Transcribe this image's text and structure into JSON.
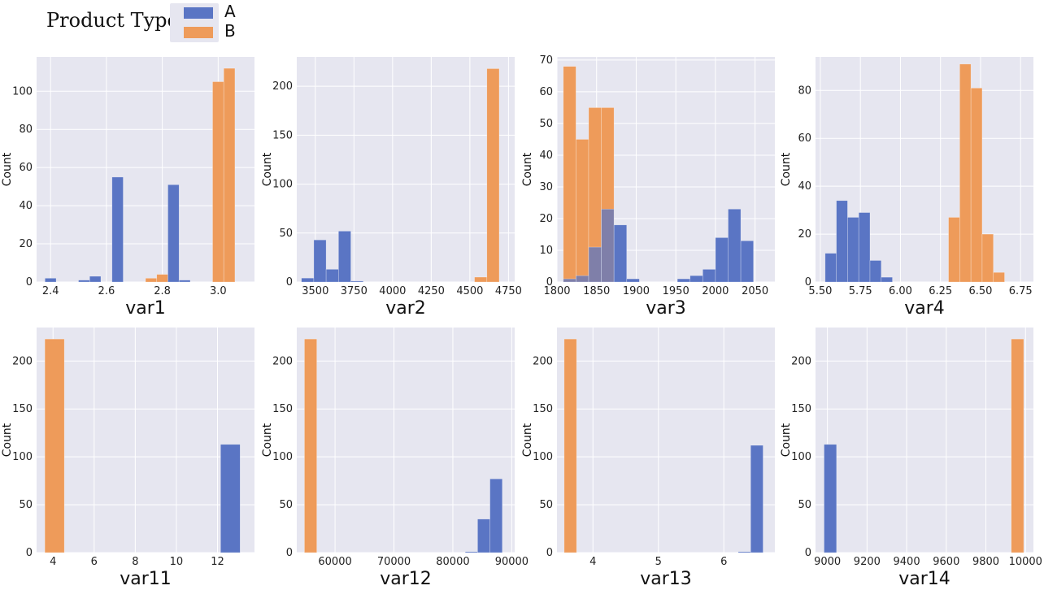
{
  "legend": {
    "title": "Product Type",
    "entries": [
      {
        "label": "A",
        "color": "#5a75c4"
      },
      {
        "label": "B",
        "color": "#ee9b5a"
      }
    ]
  },
  "style": {
    "plot_bg": "#e6e6f0",
    "grid": "#ffffff",
    "overlap": "#6a5aa8"
  },
  "chart_data": [
    {
      "type": "bar",
      "subtype": "histogram",
      "xlabel": "var1",
      "ylabel": "Count",
      "xlim": [
        2.35,
        3.13
      ],
      "ylim": [
        0,
        118
      ],
      "xticks": [
        2.4,
        2.6,
        2.8,
        3.0
      ],
      "xtick_labels": [
        "2.4",
        "2.6",
        "2.8",
        "3.0"
      ],
      "yticks": [
        0,
        20,
        40,
        60,
        80,
        100
      ],
      "grid": true,
      "bin_edges": [
        2.38,
        2.42,
        2.46,
        2.5,
        2.54,
        2.58,
        2.62,
        2.66,
        2.7,
        2.74,
        2.78,
        2.82,
        2.86,
        2.9,
        2.94,
        2.98,
        3.02,
        3.06,
        3.1
      ],
      "series": [
        {
          "name": "A",
          "counts": [
            2,
            0,
            0,
            1,
            3,
            0,
            55,
            0,
            0,
            0,
            0,
            51,
            1,
            0,
            0,
            0,
            0,
            0
          ]
        },
        {
          "name": "B",
          "counts": [
            0,
            0,
            0,
            0,
            0,
            0,
            0,
            0,
            0,
            2,
            4,
            0,
            0,
            0,
            0,
            105,
            112,
            0
          ]
        }
      ]
    },
    {
      "type": "bar",
      "subtype": "histogram",
      "xlabel": "var2",
      "ylabel": "Count",
      "xlim": [
        3380,
        4790
      ],
      "ylim": [
        0,
        230
      ],
      "xticks": [
        3500,
        3750,
        4000,
        4250,
        4500,
        4750
      ],
      "xtick_labels": [
        "3500",
        "3750",
        "4000",
        "4250",
        "4500",
        "4750"
      ],
      "yticks": [
        0,
        50,
        100,
        150,
        200
      ],
      "grid": true,
      "bin_edges": [
        3410,
        3490,
        3570,
        3650,
        3730,
        3810,
        3890,
        3970,
        4050,
        4130,
        4210,
        4290,
        4370,
        4450,
        4530,
        4610,
        4690,
        4770
      ],
      "series": [
        {
          "name": "A",
          "counts": [
            4,
            43,
            13,
            52,
            1,
            0,
            0,
            0,
            0,
            0,
            0,
            0,
            0,
            0,
            0,
            0,
            0
          ]
        },
        {
          "name": "B",
          "counts": [
            0,
            0,
            0,
            0,
            0,
            0,
            0,
            0,
            0,
            0,
            0,
            0,
            0,
            0,
            5,
            218,
            0
          ]
        }
      ]
    },
    {
      "type": "bar",
      "subtype": "histogram",
      "xlabel": "var3",
      "ylabel": "Count",
      "xlim": [
        1800,
        2075
      ],
      "ylim": [
        0,
        71
      ],
      "xticks": [
        1800,
        1850,
        1900,
        1950,
        2000,
        2050
      ],
      "xtick_labels": [
        "1800",
        "1850",
        "1900",
        "1950",
        "2000",
        "2050"
      ],
      "yticks": [
        0,
        10,
        20,
        30,
        40,
        50,
        60,
        70
      ],
      "grid": true,
      "bin_edges": [
        1808,
        1824,
        1840,
        1856,
        1872,
        1888,
        1904,
        1920,
        1936,
        1952,
        1968,
        1984,
        2000,
        2016,
        2032,
        2048,
        2064
      ],
      "series": [
        {
          "name": "A",
          "counts": [
            1,
            2,
            11,
            23,
            18,
            1,
            0,
            0,
            0,
            1,
            2,
            4,
            14,
            23,
            13,
            0
          ]
        },
        {
          "name": "B",
          "counts": [
            68,
            45,
            55,
            55,
            0,
            0,
            0,
            0,
            0,
            0,
            0,
            0,
            0,
            0,
            0,
            0
          ]
        }
      ]
    },
    {
      "type": "bar",
      "subtype": "histogram",
      "xlabel": "var4",
      "ylabel": "Count",
      "xlim": [
        5.47,
        6.83
      ],
      "ylim": [
        0,
        94
      ],
      "xticks": [
        5.5,
        5.75,
        6.0,
        6.25,
        6.5,
        6.75
      ],
      "xtick_labels": [
        "5.50",
        "5.75",
        "6.00",
        "6.25",
        "6.50",
        "6.75"
      ],
      "yticks": [
        0,
        20,
        40,
        60,
        80
      ],
      "grid": true,
      "bin_edges": [
        5.53,
        5.6,
        5.67,
        5.74,
        5.81,
        5.88,
        5.95,
        6.02,
        6.09,
        6.16,
        6.23,
        6.3,
        6.37,
        6.44,
        6.51,
        6.58,
        6.65,
        6.72,
        6.79
      ],
      "series": [
        {
          "name": "A",
          "counts": [
            12,
            34,
            27,
            29,
            9,
            2,
            0,
            0,
            0,
            0,
            0,
            0,
            0,
            0,
            0,
            0,
            0,
            0
          ]
        },
        {
          "name": "B",
          "counts": [
            0,
            0,
            0,
            0,
            0,
            0,
            0,
            0,
            0,
            0,
            0,
            27,
            91,
            81,
            20,
            4,
            0,
            0
          ]
        }
      ]
    },
    {
      "type": "bar",
      "subtype": "histogram",
      "xlabel": "var11",
      "ylabel": "Count",
      "xlim": [
        3.2,
        13.8
      ],
      "ylim": [
        0,
        235
      ],
      "xticks": [
        4,
        6,
        8,
        10,
        12
      ],
      "xtick_labels": [
        "4",
        "6",
        "8",
        "10",
        "12"
      ],
      "yticks": [
        0,
        50,
        100,
        150,
        200
      ],
      "grid": true,
      "bin_edges": [
        3.6,
        4.55,
        5.5,
        6.45,
        7.4,
        8.35,
        9.3,
        10.25,
        11.2,
        12.15,
        13.1
      ],
      "series": [
        {
          "name": "A",
          "counts": [
            0,
            0,
            0,
            0,
            0,
            0,
            0,
            0,
            0,
            113
          ]
        },
        {
          "name": "B",
          "counts": [
            223,
            0,
            0,
            0,
            0,
            0,
            0,
            0,
            0,
            0
          ]
        }
      ]
    },
    {
      "type": "bar",
      "subtype": "histogram",
      "xlabel": "var12",
      "ylabel": "Count",
      "xlim": [
        53500,
        90500
      ],
      "ylim": [
        0,
        235
      ],
      "xticks": [
        60000,
        70000,
        80000,
        90000
      ],
      "xtick_labels": [
        "60000",
        "70000",
        "80000",
        "90000"
      ],
      "yticks": [
        0,
        50,
        100,
        150,
        200
      ],
      "grid": true,
      "bin_edges": [
        54800,
        56900,
        59000,
        61100,
        63200,
        65300,
        67400,
        69500,
        71600,
        73700,
        75800,
        77900,
        80000,
        82100,
        84200,
        86300,
        88400
      ],
      "series": [
        {
          "name": "A",
          "counts": [
            0,
            0,
            0,
            0,
            0,
            0,
            0,
            0,
            0,
            0,
            0,
            0,
            0,
            1,
            35,
            77
          ]
        },
        {
          "name": "B",
          "counts": [
            223,
            0,
            0,
            0,
            0,
            0,
            0,
            0,
            0,
            0,
            0,
            0,
            0,
            0,
            0,
            0
          ]
        }
      ]
    },
    {
      "type": "bar",
      "subtype": "histogram",
      "xlabel": "var13",
      "ylabel": "Count",
      "xlim": [
        3.45,
        6.78
      ],
      "ylim": [
        0,
        235
      ],
      "xticks": [
        4,
        5,
        6
      ],
      "xtick_labels": [
        "4",
        "5",
        "6"
      ],
      "yticks": [
        0,
        50,
        100,
        150,
        200
      ],
      "grid": true,
      "bin_edges": [
        3.56,
        3.75,
        3.94,
        4.13,
        4.32,
        4.51,
        4.7,
        4.89,
        5.08,
        5.27,
        5.46,
        5.65,
        5.84,
        6.03,
        6.22,
        6.41,
        6.6
      ],
      "series": [
        {
          "name": "A",
          "counts": [
            0,
            0,
            0,
            0,
            0,
            0,
            0,
            0,
            0,
            0,
            0,
            0,
            0,
            0,
            1,
            112
          ]
        },
        {
          "name": "B",
          "counts": [
            223,
            0,
            0,
            0,
            0,
            0,
            0,
            0,
            0,
            0,
            0,
            0,
            0,
            0,
            0,
            0
          ]
        }
      ]
    },
    {
      "type": "bar",
      "subtype": "histogram",
      "xlabel": "var14",
      "ylabel": "Count",
      "xlim": [
        8940,
        10040
      ],
      "ylim": [
        0,
        235
      ],
      "xticks": [
        9000,
        9200,
        9400,
        9600,
        9800,
        10000
      ],
      "xtick_labels": [
        "9000",
        "9200",
        "9400",
        "9600",
        "9800",
        "10000"
      ],
      "yticks": [
        0,
        50,
        100,
        150,
        200
      ],
      "grid": true,
      "bin_edges": [
        8983,
        9046,
        9109,
        9172,
        9235,
        9298,
        9361,
        9424,
        9487,
        9550,
        9613,
        9676,
        9739,
        9802,
        9865,
        9928,
        9991
      ],
      "series": [
        {
          "name": "A",
          "counts": [
            113,
            0,
            0,
            0,
            0,
            0,
            0,
            0,
            0,
            0,
            0,
            0,
            0,
            0,
            0,
            0
          ]
        },
        {
          "name": "B",
          "counts": [
            0,
            0,
            0,
            0,
            0,
            0,
            0,
            0,
            0,
            0,
            0,
            0,
            0,
            0,
            0,
            223
          ]
        }
      ]
    }
  ]
}
